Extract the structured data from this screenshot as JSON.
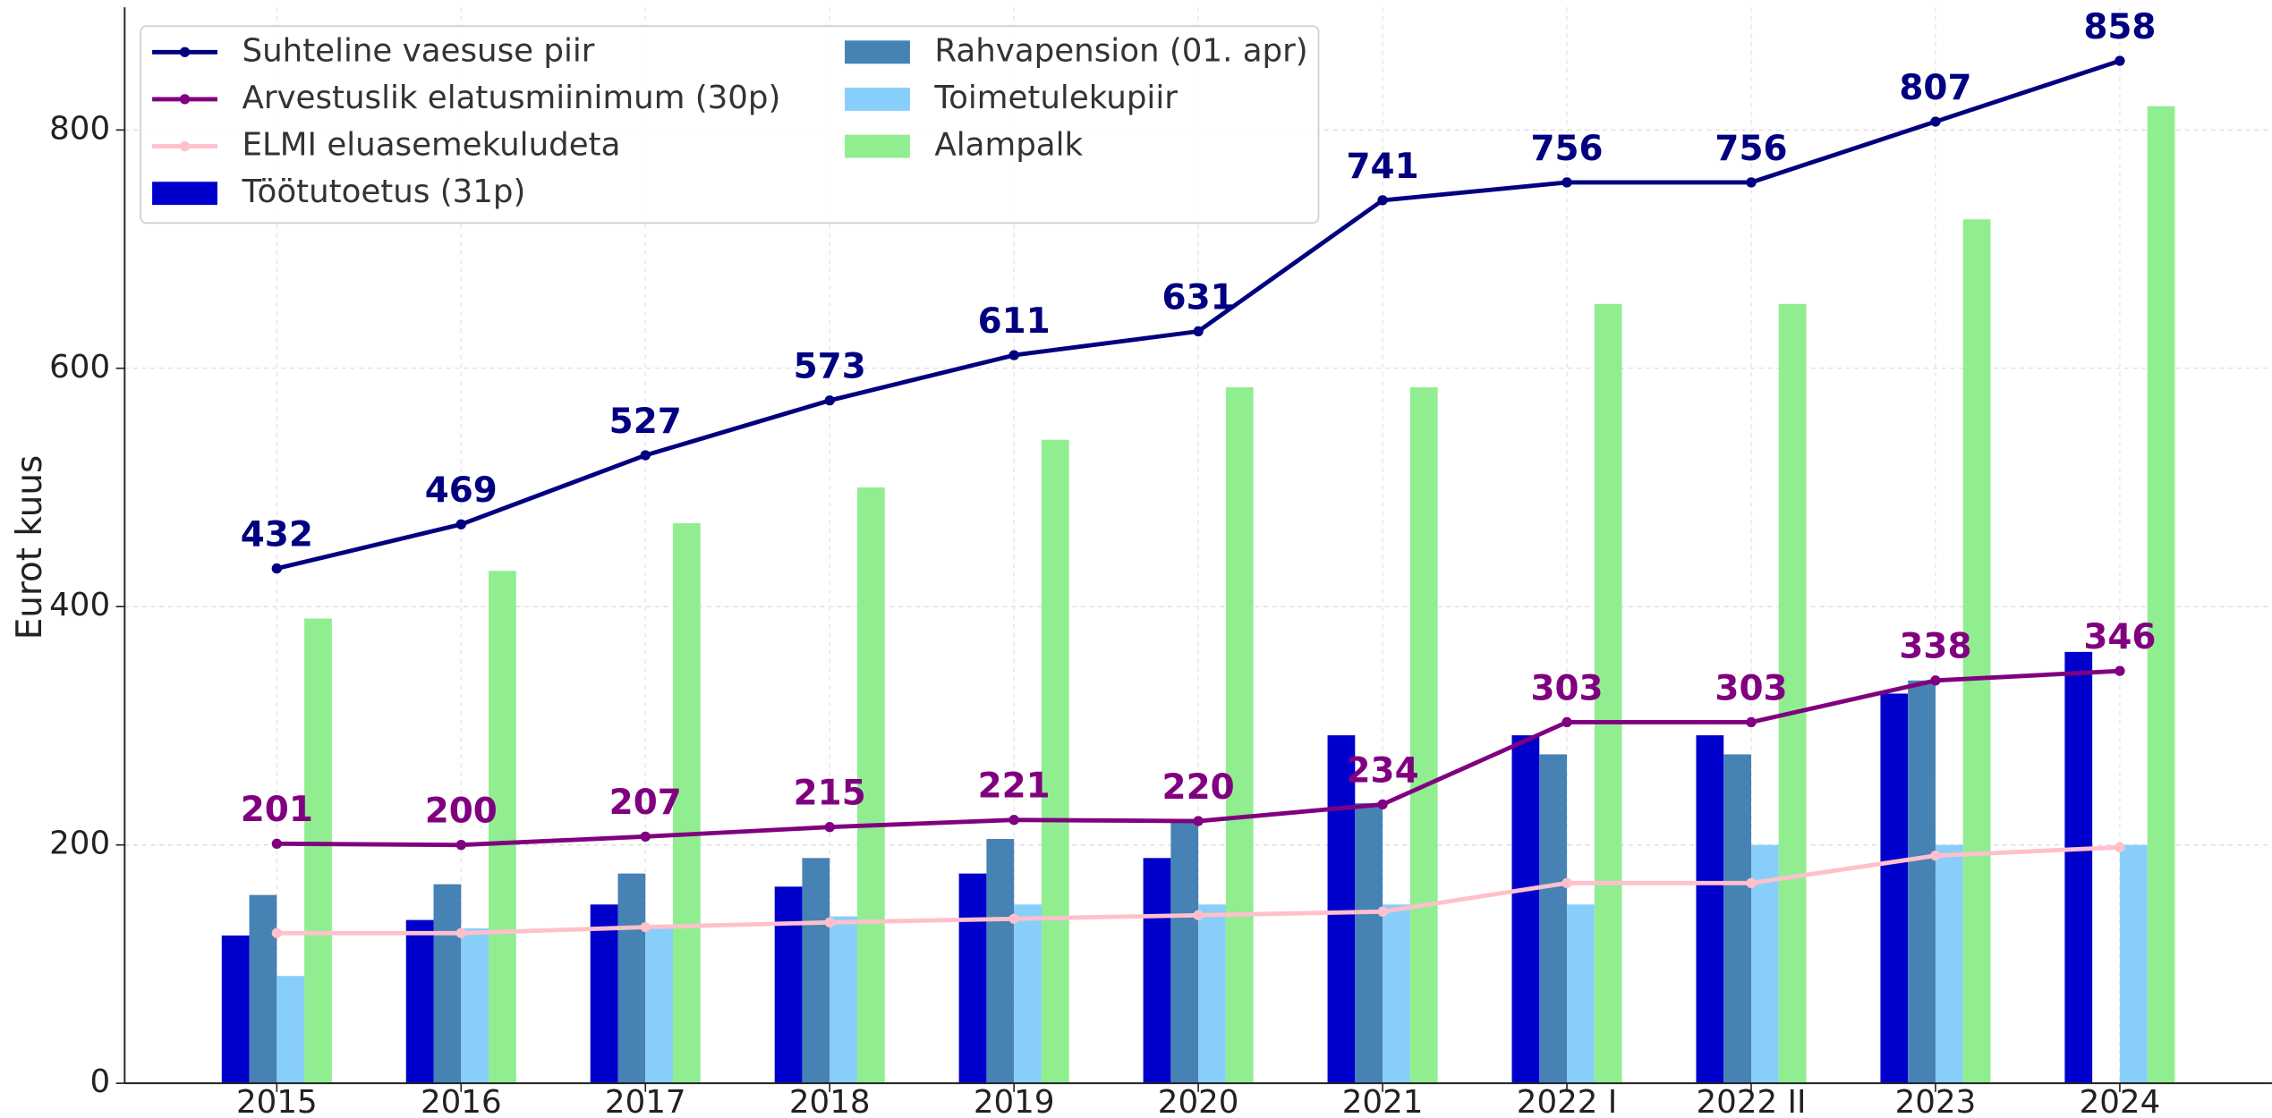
{
  "chart_data": {
    "type": "bar+line",
    "y_label": "Eurot kuus",
    "categories": [
      "2015",
      "2016",
      "2017",
      "2018",
      "2019",
      "2020",
      "2021",
      "2022 I",
      "2022 II",
      "2023",
      "2024"
    ],
    "series": [
      {
        "name": "Suhteline vaesuse piir",
        "type": "line",
        "color": "#000080",
        "data_labels": true,
        "values": [
          432,
          469,
          527,
          573,
          611,
          631,
          741,
          756,
          756,
          807,
          858
        ]
      },
      {
        "name": "Arvestuslik elatusmiinimum (30p)",
        "type": "line",
        "color": "#800080",
        "data_labels": true,
        "values": [
          201,
          200,
          207,
          215,
          221,
          220,
          234,
          303,
          303,
          338,
          346
        ]
      },
      {
        "name": "ELMI eluasemekuludeta",
        "type": "line",
        "color": "#ffc0cb",
        "data_labels": false,
        "values": [
          126,
          126,
          131,
          135,
          138,
          141,
          144,
          168,
          168,
          191,
          198
        ]
      },
      {
        "name": "Töötutoetus (31p)",
        "type": "bar",
        "color": "#0000cd",
        "values": [
          124,
          137,
          150,
          165,
          176,
          189,
          292,
          292,
          292,
          327,
          362
        ]
      },
      {
        "name": "Rahvapension (01. apr)",
        "type": "bar",
        "color": "#4682b4",
        "values": [
          158,
          167,
          176,
          189,
          205,
          221,
          235,
          276,
          276,
          338,
          null
        ]
      },
      {
        "name": "Toimetulekupiir",
        "type": "bar",
        "color": "#87cefa",
        "values": [
          90,
          130,
          130,
          140,
          150,
          150,
          150,
          150,
          200,
          200,
          200
        ]
      },
      {
        "name": "Alampalk",
        "type": "bar",
        "color": "#90ee90",
        "values": [
          390,
          430,
          470,
          500,
          540,
          584,
          584,
          654,
          654,
          725,
          820
        ]
      }
    ],
    "ylim": [
      0,
      903
    ],
    "yticks": [
      0,
      200,
      400,
      600,
      800
    ],
    "grid": true,
    "legend": "upper left"
  }
}
